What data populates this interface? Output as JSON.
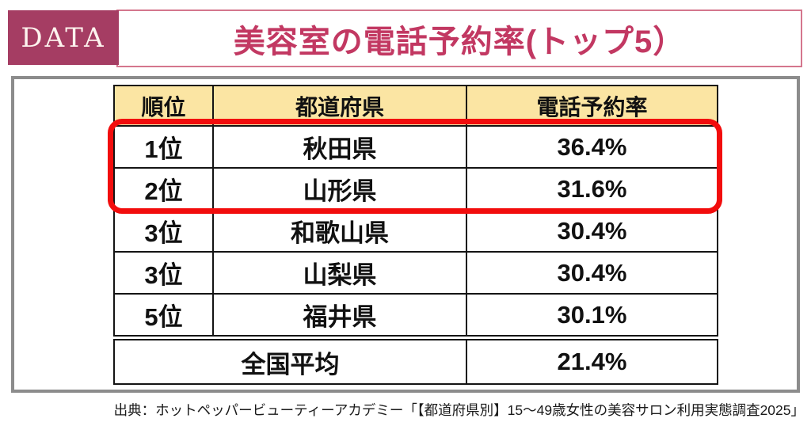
{
  "badge": {
    "label": "DATA"
  },
  "header": {
    "title": "美容室の電話予約率(トップ5）"
  },
  "table": {
    "columns": {
      "rank": "順位",
      "prefecture": "都道府県",
      "rate": "電話予約率"
    },
    "rows": [
      {
        "rank": "1位",
        "prefecture": "秋田県",
        "rate": "36.4%"
      },
      {
        "rank": "2位",
        "prefecture": "山形県",
        "rate": "31.6%"
      },
      {
        "rank": "3位",
        "prefecture": "和歌山県",
        "rate": "30.4%"
      },
      {
        "rank": "3位",
        "prefecture": "山梨県",
        "rate": "30.4%"
      },
      {
        "rank": "5位",
        "prefecture": "福井県",
        "rate": "30.1%"
      }
    ],
    "summary": {
      "label": "全国平均",
      "rate": "21.4%"
    }
  },
  "source_text": "出典：ホットペッパービューティーアカデミー「【都道府県別】15～49歳女性の美容サロン利用実態調査2025」",
  "colors": {
    "badge_background": "#A53D63",
    "title_text": "#C23862",
    "title_border": "#D4768D",
    "frame_border": "#8C8C8C",
    "header_cell_background": "#FBE5A3",
    "highlight_outline": "#F20D0D",
    "table_border": "#141414"
  },
  "chart_data": {
    "type": "table",
    "title": "美容室の電話予約率(トップ5）",
    "columns": [
      "順位",
      "都道府県",
      "電話予約率"
    ],
    "rows": [
      [
        "1位",
        "秋田県",
        "36.4%"
      ],
      [
        "2位",
        "山形県",
        "31.6%"
      ],
      [
        "3位",
        "和歌山県",
        "30.4%"
      ],
      [
        "3位",
        "山梨県",
        "30.4%"
      ],
      [
        "5位",
        "福井県",
        "30.1%"
      ],
      [
        "全国平均",
        "",
        "21.4%"
      ]
    ],
    "values_percent": [
      36.4,
      31.6,
      30.4,
      30.4,
      30.1
    ],
    "national_average_percent": 21.4,
    "highlighted_row_indices": [
      0,
      1
    ],
    "source": "出典：ホットペッパービューティーアカデミー「【都道府県別】15～49歳女性の美容サロン利用実態調査2025」"
  }
}
